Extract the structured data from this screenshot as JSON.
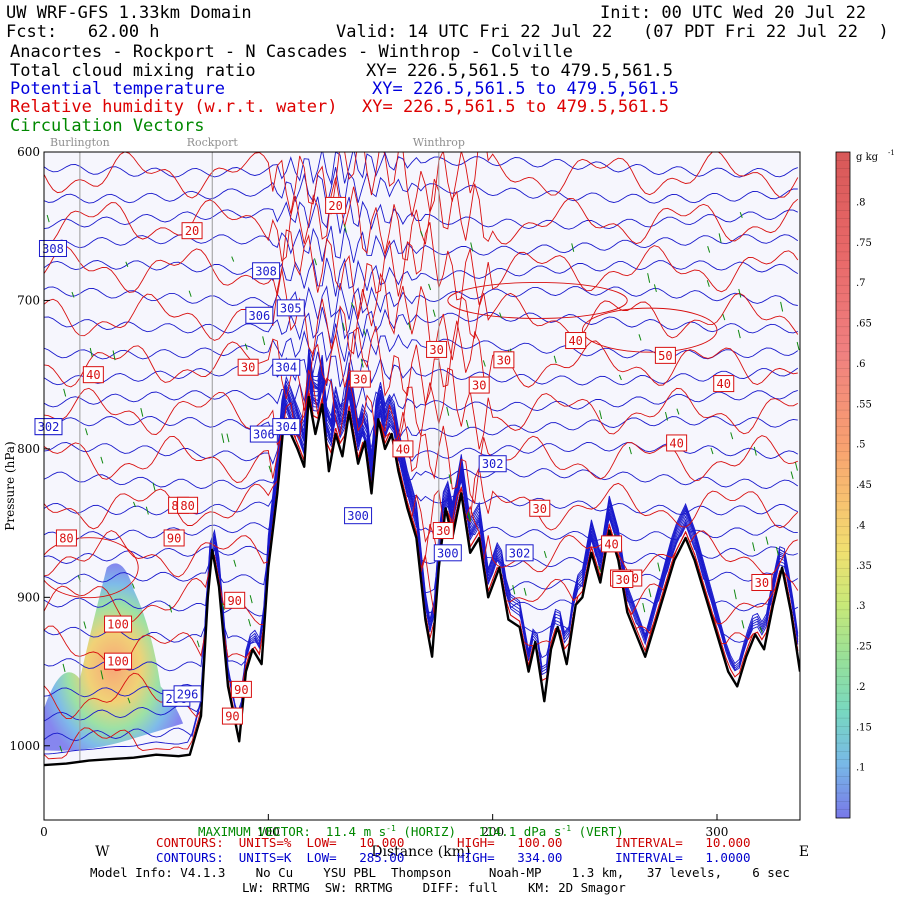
{
  "header": {
    "model_title": "UW WRF-GFS 1.33km Domain",
    "init": "Init: 00 UTC Wed 20 Jul 22",
    "fcst": "Fcst:   62.00 h",
    "valid": "Valid: 14 UTC Fri 22 Jul 22   (07 PDT Fri 22 Jul 22  )",
    "route": "Anacortes - Rockport - N Cascades - Winthrop - Colville",
    "fields": [
      {
        "name": "Total cloud mixing ratio",
        "xy": "XY= 226.5,561.5 to 479.5,561.5",
        "color": "#000000"
      },
      {
        "name": "Potential temperature",
        "xy": "XY= 226.5,561.5 to 479.5,561.5",
        "color": "#0000dd"
      },
      {
        "name": "Relative humidity (w.r.t. water)",
        "xy": "XY= 226.5,561.5 to 479.5,561.5",
        "color": "#dd0000"
      },
      {
        "name": "Circulation Vectors",
        "xy": "",
        "color": "#008800"
      }
    ]
  },
  "places": [
    "Burlington",
    "Rockport",
    "Winthrop"
  ],
  "chart_data": {
    "type": "cross-section",
    "xlabel": "Distance (km)",
    "ylabel": "Pressure (hPa)",
    "xlim": [
      0,
      337
    ],
    "ylim": [
      1050,
      600
    ],
    "x_ticks": [
      0,
      100,
      200,
      300
    ],
    "y_ticks": [
      600,
      700,
      800,
      900,
      1000
    ],
    "x_tick_labels": [
      "0",
      "100",
      "200",
      "300"
    ],
    "y_tick_labels": [
      "600",
      "700",
      "800",
      "900",
      "1000"
    ],
    "direction_labels": [
      "W",
      "E"
    ],
    "place_positions_km": [
      16,
      75,
      176
    ],
    "terrain_surface_pressure": [
      [
        0,
        1013
      ],
      [
        10,
        1012
      ],
      [
        20,
        1010
      ],
      [
        30,
        1009
      ],
      [
        40,
        1008
      ],
      [
        50,
        1006
      ],
      [
        60,
        1007
      ],
      [
        65,
        1006
      ],
      [
        70,
        980
      ],
      [
        73,
        900
      ],
      [
        75,
        868
      ],
      [
        78,
        893
      ],
      [
        82,
        960
      ],
      [
        87,
        997
      ],
      [
        90,
        950
      ],
      [
        93,
        935
      ],
      [
        97,
        945
      ],
      [
        100,
        880
      ],
      [
        104,
        830
      ],
      [
        107,
        780
      ],
      [
        110,
        790
      ],
      [
        113,
        800
      ],
      [
        116,
        812
      ],
      [
        118,
        765
      ],
      [
        121,
        790
      ],
      [
        124,
        770
      ],
      [
        127,
        815
      ],
      [
        130,
        790
      ],
      [
        133,
        805
      ],
      [
        136,
        775
      ],
      [
        140,
        810
      ],
      [
        143,
        795
      ],
      [
        146,
        830
      ],
      [
        149,
        780
      ],
      [
        152,
        800
      ],
      [
        155,
        790
      ],
      [
        158,
        815
      ],
      [
        162,
        840
      ],
      [
        166,
        860
      ],
      [
        170,
        915
      ],
      [
        173,
        940
      ],
      [
        176,
        880
      ],
      [
        179,
        840
      ],
      [
        182,
        860
      ],
      [
        186,
        830
      ],
      [
        190,
        870
      ],
      [
        194,
        860
      ],
      [
        198,
        900
      ],
      [
        203,
        880
      ],
      [
        207,
        915
      ],
      [
        212,
        920
      ],
      [
        216,
        950
      ],
      [
        219,
        930
      ],
      [
        223,
        970
      ],
      [
        226,
        935
      ],
      [
        229,
        920
      ],
      [
        233,
        945
      ],
      [
        237,
        905
      ],
      [
        240,
        900
      ],
      [
        244,
        870
      ],
      [
        248,
        890
      ],
      [
        252,
        855
      ],
      [
        256,
        875
      ],
      [
        260,
        910
      ],
      [
        264,
        925
      ],
      [
        268,
        940
      ],
      [
        272,
        920
      ],
      [
        276,
        900
      ],
      [
        281,
        875
      ],
      [
        286,
        860
      ],
      [
        290,
        875
      ],
      [
        295,
        900
      ],
      [
        300,
        925
      ],
      [
        305,
        950
      ],
      [
        309,
        960
      ],
      [
        313,
        940
      ],
      [
        317,
        925
      ],
      [
        321,
        935
      ],
      [
        325,
        905
      ],
      [
        329,
        880
      ],
      [
        333,
        910
      ],
      [
        337,
        950
      ]
    ],
    "theta_labels_K": [
      "308",
      "302",
      "308",
      "306",
      "305",
      "304",
      "302",
      "306",
      "304",
      "300",
      "302",
      "300",
      "296",
      "296",
      "302"
    ],
    "rh_labels_pct": [
      "20",
      "20",
      "40",
      "30",
      "30",
      "30",
      "40",
      "30",
      "30",
      "50",
      "40",
      "40",
      "80",
      "80",
      "30",
      "80",
      "90",
      "100",
      "100",
      "90",
      "90",
      "90",
      "40",
      "30",
      "30",
      "40",
      "30",
      "40",
      "30"
    ],
    "cloud_colorbar": {
      "units": "g kg",
      "ticks": [
        ".1",
        ".15",
        ".2",
        ".25",
        ".3",
        ".35",
        ".4",
        ".45",
        ".5",
        ".55",
        ".6",
        ".65",
        ".7",
        ".75",
        ".8"
      ]
    }
  },
  "footer": {
    "max_vector": "MAXIMUM VECTOR:  11.4 m s",
    "horiz": "(HORIZ)",
    "vert": "114.1 dPa s",
    "vert_suffix": "(VERT)",
    "rh_line": "CONTOURS:  UNITS=%  LOW=   10.000       HIGH=   100.00       INTERVAL=   10.000",
    "theta_line": "CONTOURS:  UNITS=K  LOW=   285.00       HIGH=   334.00       INTERVAL=   1.0000",
    "model_info": "Model Info: V4.1.3    No Cu    YSU PBL  Thompson     Noah-MP    1.3 km,   37 levels,    6 sec",
    "physics": "LW: RRTMG  SW: RRTMG    DIFF: full    KM: 2D Smagor"
  }
}
